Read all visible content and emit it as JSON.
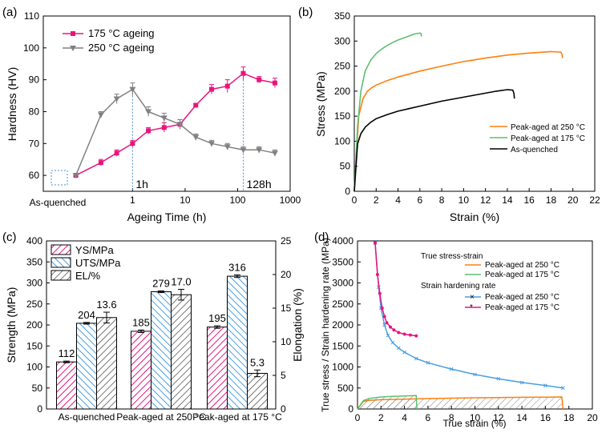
{
  "colors": {
    "magenta": "#e8157d",
    "gray": "#808080",
    "orange": "#ff7f0e",
    "green": "#5fbf6f",
    "black": "#000000",
    "blue": "#4a9ee0",
    "guide": "#4a90d9"
  },
  "chart_data": [
    {
      "panel_label": "(a)",
      "type": "line",
      "xscale": "log",
      "x": [
        0.0833,
        0.25,
        0.5,
        1,
        2,
        4,
        8,
        16,
        32,
        64,
        128,
        256,
        512
      ],
      "xlim": [
        0.02,
        1000
      ],
      "ylim": [
        55,
        110
      ],
      "xticks": [
        1,
        10,
        100,
        1000
      ],
      "yticks": [
        60,
        70,
        80,
        90,
        100,
        110
      ],
      "xtick_extra_label": "As-quenched",
      "xlabel": "Ageing Time (h)",
      "ylabel": "Hardness (HV)",
      "series": [
        {
          "name": "175 °C ageing",
          "color": "#e8157d",
          "marker": "square",
          "values": [
            60,
            64,
            67,
            70,
            74,
            75,
            76,
            82,
            87,
            88,
            92,
            90,
            89
          ],
          "errors": [
            0.5,
            1,
            1,
            1,
            1,
            1.5,
            1.5,
            0.5,
            1.5,
            2,
            2,
            1,
            1.5
          ]
        },
        {
          "name": "250 °C ageing",
          "color": "#808080",
          "marker": "triangle-down",
          "values": [
            60,
            79,
            84,
            87,
            80,
            78,
            76,
            72,
            70,
            69,
            68,
            68,
            67
          ],
          "errors": [
            0.5,
            1,
            1.5,
            2,
            1.5,
            1.5,
            1.5,
            1,
            1,
            1,
            1,
            1,
            1
          ]
        }
      ],
      "annotations": [
        "1h",
        "128h"
      ]
    },
    {
      "panel_label": "(b)",
      "type": "line",
      "xlabel": "Strain (%)",
      "ylabel": "Stress (MPa)",
      "xlim": [
        0,
        22
      ],
      "ylim": [
        0,
        350
      ],
      "xticks": [
        0,
        2,
        4,
        6,
        8,
        10,
        12,
        14,
        16,
        18,
        20,
        22
      ],
      "yticks": [
        0,
        50,
        100,
        150,
        200,
        250,
        300,
        350
      ],
      "series": [
        {
          "name": "Peak-aged at 250 °C",
          "color": "#ff7f0e",
          "x": [
            0,
            0.4,
            0.8,
            1.2,
            1.6,
            2,
            3,
            4,
            6,
            8,
            10,
            12,
            14,
            16,
            18,
            18.9,
            19,
            19.05
          ],
          "y": [
            0,
            150,
            185,
            200,
            207,
            212,
            221,
            228,
            240,
            250,
            259,
            266,
            272,
            276,
            279,
            278,
            274,
            266
          ]
        },
        {
          "name": "Peak-aged at 175 °C",
          "color": "#5fbf6f",
          "x": [
            0,
            0.3,
            0.6,
            1,
            1.5,
            2,
            2.5,
            3,
            3.5,
            4,
            4.5,
            5,
            5.5,
            6,
            6.1,
            6.15
          ],
          "y": [
            0,
            130,
            200,
            240,
            262,
            275,
            284,
            291,
            297,
            302,
            306,
            310,
            314,
            316,
            315,
            309
          ]
        },
        {
          "name": "As-quenched",
          "color": "#000000",
          "x": [
            0,
            0.3,
            0.6,
            1,
            1.5,
            2,
            3,
            4,
            6,
            8,
            10,
            12,
            13,
            14,
            14.5,
            14.6,
            14.65
          ],
          "y": [
            0,
            95,
            115,
            128,
            138,
            145,
            153,
            160,
            170,
            180,
            188,
            196,
            200,
            203,
            202,
            196,
            185
          ]
        }
      ],
      "legend_position": "lower-right"
    },
    {
      "panel_label": "(c)",
      "type": "bar",
      "categories": [
        "As-quenched",
        "Peak-aged at 250 °C",
        "Peak-aged at 175 °C"
      ],
      "ylabel": "Strength (MPa)",
      "y2label": "Elongation (%)",
      "ylim": [
        0,
        400
      ],
      "y2lim": [
        0,
        25
      ],
      "yticks": [
        0,
        50,
        100,
        150,
        200,
        250,
        300,
        350,
        400
      ],
      "y2ticks": [
        0,
        5,
        10,
        15,
        20,
        25
      ],
      "series": [
        {
          "name": "YS/MPa",
          "axis": "left",
          "color": "#e8157d",
          "values": [
            112,
            185,
            195
          ],
          "errors": [
            2,
            3,
            3
          ]
        },
        {
          "name": "UTS/MPa",
          "axis": "left",
          "color": "#4a9ee0",
          "values": [
            204,
            279,
            316
          ],
          "errors": [
            2,
            2,
            3
          ]
        },
        {
          "name": "EL/%",
          "axis": "right",
          "color": "#808080",
          "values": [
            13.6,
            17.0,
            5.3
          ],
          "errors": [
            0.8,
            0.8,
            0.5
          ]
        }
      ],
      "data_labels": [
        "112",
        "204",
        "13.6",
        "185",
        "279",
        "17.0",
        "195",
        "316",
        "5.3"
      ]
    },
    {
      "panel_label": "(d)",
      "type": "line",
      "xlabel": "True strain (%)",
      "ylabel": "True stress / Strain hardening rate (MPa)",
      "xlim": [
        0,
        20
      ],
      "ylim": [
        0,
        4000
      ],
      "xticks": [
        0,
        2,
        4,
        6,
        8,
        10,
        12,
        14,
        16,
        18,
        20
      ],
      "yticks": [
        0,
        500,
        1000,
        1500,
        2000,
        2500,
        3000,
        3500,
        4000
      ],
      "legend_title_1": "True stress-strain",
      "legend_title_2": "Strain hardening rate",
      "series": [
        {
          "name": "Peak-aged at 250 °C",
          "group": "True stress-strain",
          "color": "#ff7f0e",
          "x": [
            0,
            0.5,
            1,
            2,
            4,
            6,
            8,
            10,
            12,
            14,
            16,
            17.4,
            17.5
          ],
          "y": [
            0,
            180,
            205,
            220,
            235,
            248,
            258,
            266,
            272,
            278,
            282,
            285,
            0
          ]
        },
        {
          "name": "Peak-aged at 175 °C",
          "group": "True stress-strain",
          "color": "#5fbf6f",
          "x": [
            0,
            0.5,
            1,
            2,
            3,
            4,
            5,
            5.05
          ],
          "y": [
            0,
            200,
            250,
            285,
            300,
            310,
            320,
            0
          ]
        },
        {
          "name": "Peak-aged at 250 °C",
          "group": "Strain hardening rate",
          "color": "#4a9ee0",
          "marker": "x",
          "x": [
            1.5,
            1.8,
            2,
            2.3,
            2.6,
            3,
            3.5,
            4,
            5,
            6,
            8,
            10,
            12,
            14,
            16,
            17.5
          ],
          "y": [
            3950,
            2900,
            2400,
            2000,
            1750,
            1580,
            1450,
            1350,
            1200,
            1100,
            950,
            820,
            720,
            630,
            560,
            500
          ]
        },
        {
          "name": "Peak-aged at 175 °C",
          "group": "Strain hardening rate",
          "color": "#e8157d",
          "marker": "star",
          "x": [
            1.5,
            1.7,
            1.9,
            2.1,
            2.3,
            2.5,
            2.8,
            3.1,
            3.5,
            4,
            4.5,
            5
          ],
          "y": [
            3950,
            3200,
            2750,
            2400,
            2200,
            2050,
            1950,
            1880,
            1820,
            1780,
            1760,
            1740
          ]
        }
      ]
    }
  ]
}
